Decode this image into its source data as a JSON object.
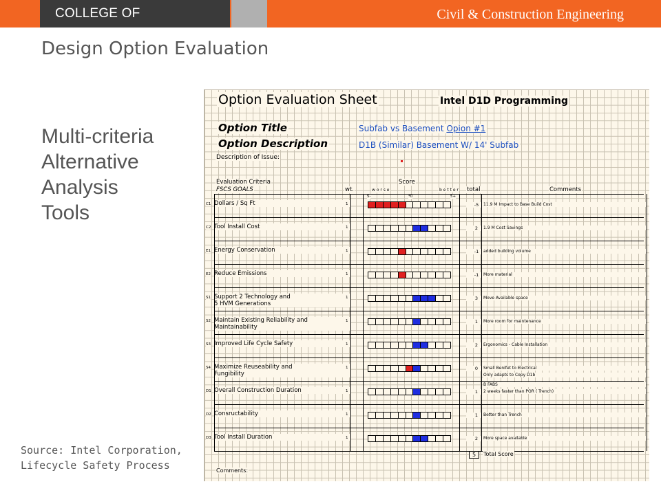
{
  "header": {
    "college": "COLLEGE OF ENGINEERING",
    "department": "Civil & Construction Engineering"
  },
  "page": {
    "title": "Design Option Evaluation",
    "subtitle_lines": [
      "Multi-criteria",
      "Alternative",
      "Analysis",
      "Tools"
    ],
    "source_lines": [
      "Source: Intel Corporation,",
      "Lifecycle Safety Process"
    ]
  },
  "sheet": {
    "title": "Option Evaluation Sheet",
    "program": "Intel D1D Programming",
    "option_title_label": "Option Title",
    "option_title_value": "Subfab vs Basement",
    "option_title_link": "Opion #1",
    "option_desc_label": "Option Description",
    "option_desc_value": "D1B (Similar) Basement W/ 14' Subfab",
    "issue_label": "Description of Issue:",
    "eval_criteria_label": "Evaluation Criteria",
    "goals_label": "FSCS GOALS",
    "wt_label": "wt.",
    "score_label": "Score",
    "worse_label": "w o r s e",
    "better_label": "b e t t e r",
    "total_label": "total",
    "comments_label": "Comments",
    "scale_minus": "5-",
    "scale_zero": "*0",
    "scale_plus": "5+",
    "total_score_value": "5",
    "total_score_label": "Total Score",
    "comments_footer": "Comments:",
    "colors": {
      "negative": "#e02020",
      "positive": "#1f2de0"
    },
    "criteria": [
      {
        "code": "C1",
        "name": "Dollars / Sq Ft",
        "name2": "",
        "wt": "1",
        "score": -5,
        "total": "-5",
        "comment": "11.9 M Impact to Base Build Cost",
        "comment2": ""
      },
      {
        "code": "C2",
        "name": "Tool Install Cost",
        "name2": "",
        "wt": "1",
        "score": 2,
        "total": "2",
        "comment": "1.9 M Cost Savings",
        "comment2": ""
      },
      {
        "code": "E1",
        "name": "Energy Conservation",
        "name2": "",
        "wt": "1",
        "score": -1,
        "total": "-1",
        "comment": "added building volume",
        "comment2": ""
      },
      {
        "code": "E2",
        "name": "Reduce Emissions",
        "name2": "",
        "wt": "1",
        "score": -1,
        "total": "-1",
        "comment": "More material",
        "comment2": ""
      },
      {
        "code": "S1",
        "name": "Support 2 Technology and",
        "name2": "5 HVM Generations",
        "wt": "1",
        "score": 3,
        "total": "3",
        "comment": "Move Available space",
        "comment2": ""
      },
      {
        "code": "S2",
        "name": "Maintain Existing Reliability and",
        "name2": "Maintainability",
        "wt": "1",
        "score": 1,
        "total": "1",
        "comment": "More room for maintenance",
        "comment2": ""
      },
      {
        "code": "S3",
        "name": "Improved Life Cycle Safety",
        "name2": "",
        "wt": "1",
        "score": 2,
        "total": "2",
        "comment": "Ergonomics - Cable Installation",
        "comment2": ""
      },
      {
        "code": "S4",
        "name": "Maximize Reuseability and",
        "name2": "Fungibility",
        "wt": "1",
        "score": 0,
        "total": "0",
        "comment": "Small Benifet to Electrical",
        "comment2": "Only adapts to Copy D1b"
      },
      {
        "code": "D1",
        "name": "Overall Construction Duration",
        "name2": "",
        "wt": "1",
        "score": 1,
        "total": "1",
        "comment": "2 weeks faster than POR ( Trench)",
        "comment2": "",
        "pre_comment": "B FABS"
      },
      {
        "code": "D2",
        "name": "Consructability",
        "name2": "",
        "wt": "1",
        "score": 1,
        "total": "1",
        "comment": "Better than Trench",
        "comment2": ""
      },
      {
        "code": "D3",
        "name": "Tool Install Duration",
        "name2": "",
        "wt": "1",
        "score": 2,
        "total": "2",
        "comment": "More space available",
        "comment2": ""
      }
    ]
  }
}
